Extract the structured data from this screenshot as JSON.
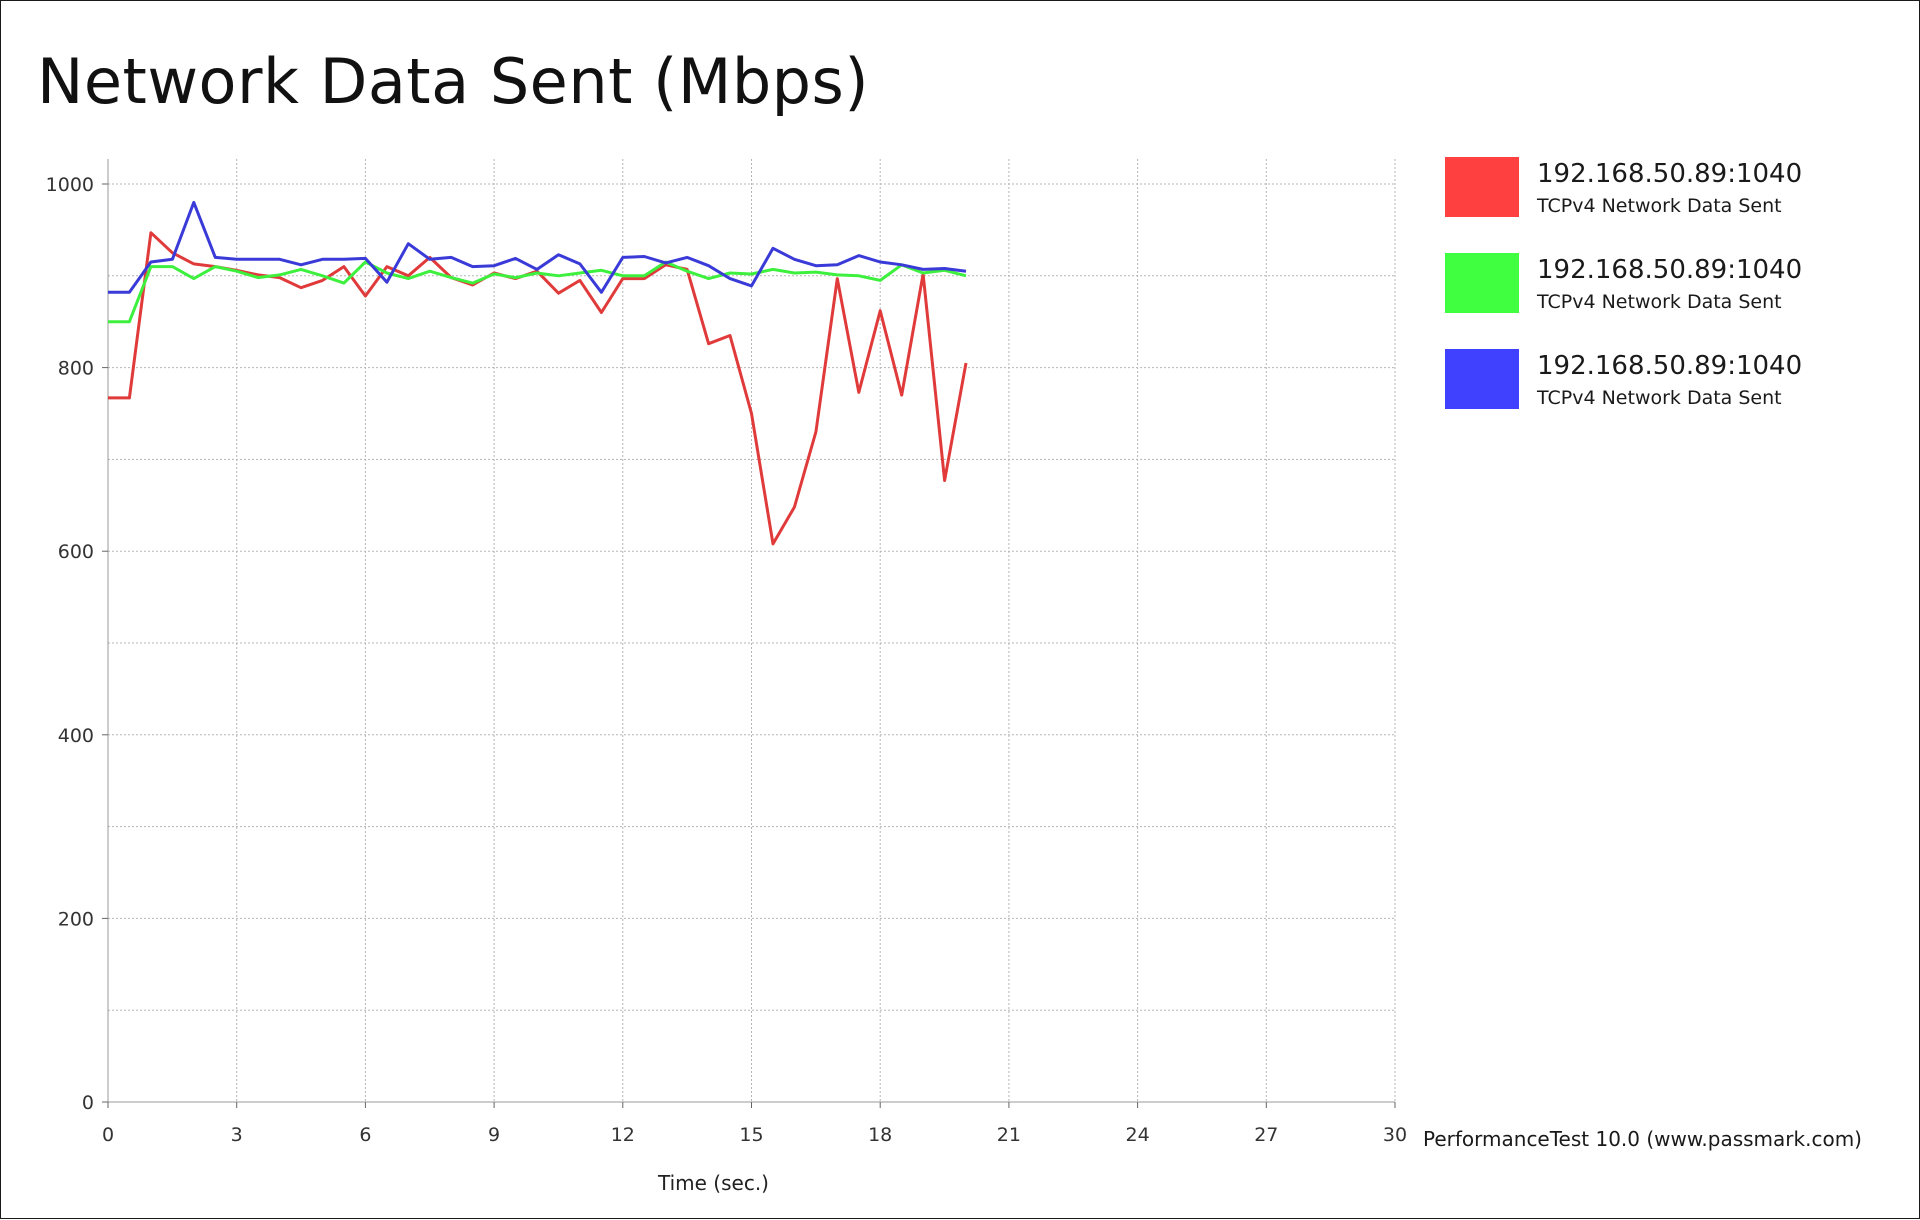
{
  "chart_data": {
    "type": "line",
    "title": "Network Data Sent (Mbps)",
    "xlabel": "Time (sec.)",
    "ylabel": "",
    "xlim": [
      0,
      30
    ],
    "ylim": [
      0,
      1000
    ],
    "x_ticks": [
      "0",
      "3",
      "6",
      "9",
      "12",
      "15",
      "18",
      "21",
      "24",
      "27",
      "30"
    ],
    "y_ticks": [
      "0",
      "200",
      "400",
      "600",
      "800",
      "1000"
    ],
    "grid": true,
    "legend_position": "right",
    "x": [
      0,
      0.5,
      1,
      1.5,
      2,
      2.5,
      3,
      3.5,
      4,
      4.5,
      5,
      5.5,
      6,
      6.5,
      7,
      7.5,
      8,
      8.5,
      9,
      9.5,
      10,
      10.5,
      11,
      11.5,
      12,
      12.5,
      13,
      13.5,
      14,
      14.5,
      15,
      15.5,
      16,
      16.5,
      17,
      17.5,
      18,
      18.5,
      19,
      19.5,
      20
    ],
    "series": [
      {
        "name": "192.168.50.89:1040",
        "description": "TCPv4 Network Data Sent",
        "color": "#ff4040",
        "values": [
          767,
          767,
          947,
          925,
          913,
          910,
          906,
          901,
          898,
          887,
          895,
          910,
          878,
          910,
          900,
          920,
          898,
          890,
          903,
          897,
          905,
          881,
          895,
          860,
          897,
          897,
          912,
          907,
          826,
          835,
          750,
          608,
          648,
          730,
          897,
          773,
          862,
          770,
          902,
          677,
          805
        ]
      },
      {
        "name": "192.168.50.89:1040",
        "description": "TCPv4 Network Data Sent",
        "color": "#40ff40",
        "values": [
          850,
          850,
          910,
          910,
          897,
          910,
          905,
          898,
          901,
          907,
          900,
          892,
          915,
          903,
          897,
          905,
          898,
          892,
          902,
          898,
          903,
          900,
          903,
          906,
          900,
          900,
          915,
          905,
          897,
          903,
          902,
          907,
          903,
          904,
          901,
          900,
          895,
          912,
          903,
          906,
          900
        ]
      },
      {
        "name": "192.168.50.89:1040",
        "description": "TCPv4 Network Data Sent",
        "color": "#4040ff",
        "values": [
          882,
          882,
          915,
          918,
          980,
          920,
          918,
          918,
          918,
          912,
          918,
          918,
          919,
          893,
          935,
          918,
          920,
          910,
          911,
          919,
          907,
          923,
          913,
          882,
          920,
          921,
          914,
          920,
          911,
          897,
          889,
          930,
          918,
          911,
          912,
          922,
          915,
          912,
          907,
          908,
          905
        ]
      }
    ]
  },
  "footer": {
    "credit": "PerformanceTest 10.0 (www.passmark.com)"
  }
}
